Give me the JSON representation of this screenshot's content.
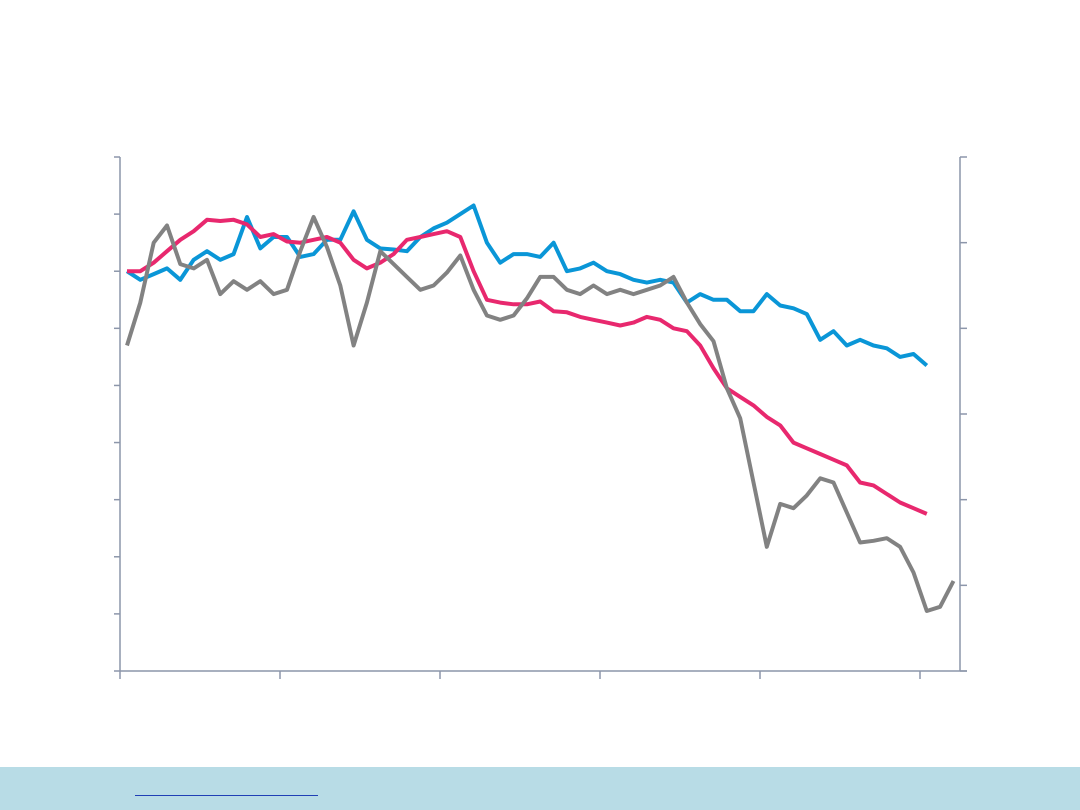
{
  "chart_data": {
    "type": "line",
    "title": "",
    "xlabel": "",
    "ylabel": "",
    "grid": false,
    "y_left_range": [
      0,
      9
    ],
    "y_right_range": [
      0,
      6
    ],
    "x_range": [
      0,
      62.5
    ],
    "series": [
      {
        "color": "#0a96d7",
        "axis": "left",
        "x": [
          0,
          1,
          2,
          3,
          4,
          5,
          6,
          7,
          8,
          9,
          10,
          11,
          12,
          13,
          14,
          15,
          16,
          17,
          18,
          19,
          20,
          21,
          22,
          23,
          24,
          25,
          26,
          27,
          28,
          29,
          30,
          31,
          32,
          33,
          34,
          35,
          36,
          37,
          38,
          39,
          40,
          41,
          42,
          43,
          44,
          45,
          46,
          47,
          48,
          49,
          50,
          51,
          52,
          53,
          54,
          55,
          56,
          57,
          58,
          59,
          60
        ],
        "values": [
          7.0,
          6.85,
          6.95,
          7.05,
          6.85,
          7.2,
          7.35,
          7.2,
          7.3,
          7.95,
          7.4,
          7.6,
          7.6,
          7.25,
          7.3,
          7.55,
          7.55,
          8.05,
          7.55,
          7.4,
          7.38,
          7.35,
          7.6,
          7.75,
          7.85,
          8.0,
          8.15,
          7.5,
          7.15,
          7.3,
          7.3,
          7.25,
          7.5,
          7.0,
          7.05,
          7.15,
          7.0,
          6.95,
          6.85,
          6.8,
          6.85,
          6.8,
          6.45,
          6.6,
          6.5,
          6.5,
          6.3,
          6.3,
          6.6,
          6.4,
          6.35,
          6.25,
          5.8,
          5.95,
          5.7,
          5.8,
          5.7,
          5.65,
          5.5,
          5.55,
          5.35
        ]
      },
      {
        "color": "#e8286e",
        "axis": "left",
        "x": [
          0,
          1,
          2,
          3,
          4,
          5,
          6,
          7,
          8,
          9,
          10,
          11,
          12,
          13,
          14,
          15,
          16,
          17,
          18,
          19,
          20,
          21,
          22,
          23,
          24,
          25,
          26,
          27,
          28,
          29,
          30,
          31,
          32,
          33,
          34,
          35,
          36,
          37,
          38,
          39,
          40,
          41,
          42,
          43,
          44,
          45,
          46,
          47,
          48,
          49,
          50,
          51,
          52,
          53,
          54,
          55,
          56,
          57,
          58,
          59,
          60
        ],
        "values": [
          7.0,
          7.0,
          7.15,
          7.35,
          7.55,
          7.7,
          7.9,
          7.88,
          7.9,
          7.82,
          7.6,
          7.65,
          7.52,
          7.5,
          7.55,
          7.6,
          7.5,
          7.2,
          7.05,
          7.15,
          7.3,
          7.55,
          7.6,
          7.65,
          7.7,
          7.6,
          7.0,
          6.5,
          6.45,
          6.42,
          6.42,
          6.47,
          6.3,
          6.28,
          6.2,
          6.15,
          6.1,
          6.05,
          6.1,
          6.2,
          6.15,
          6.0,
          5.95,
          5.7,
          5.3,
          4.95,
          4.8,
          4.65,
          4.45,
          4.3,
          4.0,
          3.9,
          3.8,
          3.7,
          3.6,
          3.3,
          3.25,
          3.1,
          2.95,
          2.85,
          2.75
        ]
      },
      {
        "color": "#828282",
        "axis": "right",
        "x": [
          0,
          1,
          2,
          3,
          4,
          5,
          6,
          7,
          8,
          9,
          10,
          11,
          12,
          13,
          14,
          15,
          16,
          17,
          18,
          19,
          20,
          21,
          22,
          23,
          24,
          25,
          26,
          27,
          28,
          29,
          30,
          31,
          32,
          33,
          34,
          35,
          36,
          37,
          38,
          39,
          40,
          41,
          42,
          43,
          44,
          45,
          46,
          47,
          48,
          49,
          50,
          51,
          52,
          53,
          54,
          55,
          56,
          57,
          58,
          59,
          60,
          61,
          62
        ],
        "values": [
          3.8,
          4.3,
          5.0,
          5.2,
          4.75,
          4.7,
          4.8,
          4.4,
          4.55,
          4.45,
          4.55,
          4.4,
          4.45,
          4.9,
          5.3,
          4.95,
          4.5,
          3.8,
          4.3,
          4.9,
          4.75,
          4.6,
          4.45,
          4.5,
          4.65,
          4.85,
          4.45,
          4.15,
          4.1,
          4.15,
          4.35,
          4.6,
          4.6,
          4.45,
          4.4,
          4.5,
          4.4,
          4.45,
          4.4,
          4.45,
          4.5,
          4.6,
          4.3,
          4.05,
          3.85,
          3.3,
          2.95,
          2.2,
          1.45,
          1.95,
          1.9,
          2.05,
          2.25,
          2.2,
          1.85,
          1.5,
          1.52,
          1.55,
          1.45,
          1.15,
          0.7,
          0.75,
          1.05
        ]
      }
    ],
    "x_ticks": [
      0,
      12,
      24,
      36,
      48,
      60
    ],
    "y_left_ticks": [
      0,
      1,
      2,
      3,
      4,
      5,
      6,
      7,
      8,
      9
    ],
    "y_right_ticks": [
      0,
      1,
      2,
      3,
      4,
      5,
      6
    ],
    "axis_color": "#8c96aa"
  },
  "footer": {
    "background": "#b8dce6",
    "link_text": ""
  }
}
